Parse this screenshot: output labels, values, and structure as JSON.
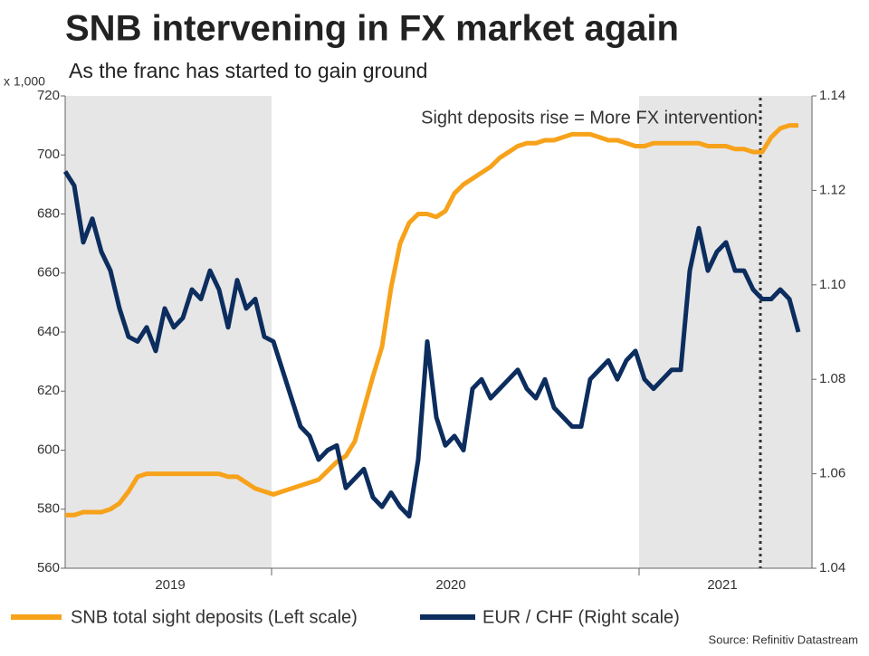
{
  "chart_data": {
    "type": "line",
    "title": "SNB intervening in FX market again",
    "subtitle": "As the franc has started to gain ground",
    "y_unit_label": "x 1,000",
    "annotation": "Sight deposits rise = More FX intervention",
    "source": "Source: Refinitiv Datastream",
    "categories": [
      null,
      null,
      null,
      null,
      null,
      null,
      null,
      null,
      null,
      null,
      null,
      null,
      "2019",
      null,
      null,
      null,
      null,
      null,
      null,
      null,
      null,
      null,
      null,
      null,
      null,
      null,
      null,
      null,
      null,
      null,
      null,
      null,
      null,
      null,
      null,
      null,
      null,
      null,
      null,
      null,
      null,
      null,
      null,
      "2020",
      null,
      null,
      null,
      null,
      null,
      null,
      null,
      null,
      null,
      null,
      null,
      null,
      null,
      null,
      null,
      null,
      null,
      null,
      null,
      null,
      null,
      null,
      null,
      null,
      null,
      null,
      null,
      null,
      null,
      "2021",
      null,
      null,
      null,
      null,
      null,
      null,
      null,
      null
    ],
    "series": [
      {
        "name": "SNB total sight deposits (Left scale)",
        "color": "#f7a21b",
        "axis": "y",
        "values": [
          578,
          578,
          579,
          579,
          579,
          580,
          582,
          586,
          591,
          592,
          592,
          592,
          592,
          592,
          592,
          592,
          592,
          592,
          591,
          591,
          589,
          587,
          586,
          585,
          586,
          587,
          588,
          589,
          590,
          593,
          596,
          598,
          603,
          614,
          625,
          635,
          655,
          670,
          677,
          680,
          680,
          679,
          681,
          687,
          690,
          692,
          694,
          696,
          699,
          701,
          703,
          704,
          704,
          705,
          705,
          706,
          707,
          707,
          707,
          706,
          705,
          705,
          704,
          703,
          703,
          704,
          704,
          704,
          704,
          704,
          704,
          703,
          703,
          703,
          702,
          702,
          701,
          701,
          706,
          709,
          710,
          710
        ]
      },
      {
        "name": "EUR / CHF (Right scale)",
        "color": "#0c2d5e",
        "axis": "y2",
        "values": [
          1.124,
          1.121,
          1.109,
          1.114,
          1.107,
          1.103,
          1.095,
          1.089,
          1.088,
          1.091,
          1.086,
          1.095,
          1.091,
          1.093,
          1.099,
          1.097,
          1.103,
          1.099,
          1.091,
          1.101,
          1.095,
          1.097,
          1.089,
          1.088,
          1.082,
          1.076,
          1.07,
          1.068,
          1.063,
          1.065,
          1.066,
          1.057,
          1.059,
          1.061,
          1.055,
          1.053,
          1.056,
          1.053,
          1.051,
          1.063,
          1.088,
          1.072,
          1.066,
          1.068,
          1.065,
          1.078,
          1.08,
          1.076,
          1.078,
          1.08,
          1.082,
          1.078,
          1.076,
          1.08,
          1.074,
          1.072,
          1.07,
          1.07,
          1.08,
          1.082,
          1.084,
          1.08,
          1.084,
          1.086,
          1.08,
          1.078,
          1.08,
          1.082,
          1.082,
          1.103,
          1.112,
          1.103,
          1.107,
          1.109,
          1.103,
          1.103,
          1.099,
          1.097,
          1.097,
          1.099,
          1.097,
          1.09
        ]
      }
    ],
    "ylim": [
      560,
      720
    ],
    "yticks": [
      560,
      580,
      600,
      620,
      640,
      660,
      680,
      700,
      720
    ],
    "y2lim": [
      1.04,
      1.14
    ],
    "y2ticks": [
      1.04,
      1.06,
      1.08,
      {
        "value": 1.1,
        "label": "1.10"
      },
      1.12,
      1.14
    ]
  }
}
